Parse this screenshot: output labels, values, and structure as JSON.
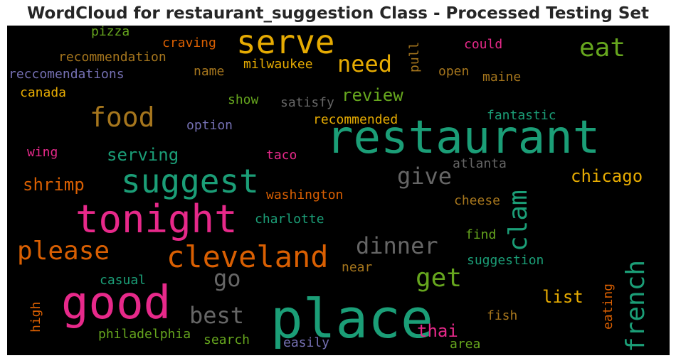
{
  "chart_data": {
    "type": "wordcloud",
    "title": "WordCloud for restaurant_suggestion Class - Processed Testing Set",
    "background": "#000000",
    "colormap": "Dark2",
    "words": [
      {
        "text": "place",
        "rank": 1,
        "color": "#1b9e77"
      },
      {
        "text": "restaurant",
        "rank": 2,
        "color": "#1b9e77"
      },
      {
        "text": "good",
        "rank": 3,
        "color": "#e7298a"
      },
      {
        "text": "tonight",
        "rank": 4,
        "color": "#e7298a"
      },
      {
        "text": "suggest",
        "rank": 5,
        "color": "#1b9e77"
      },
      {
        "text": "serve",
        "rank": 6,
        "color": "#e6ab02"
      },
      {
        "text": "cleveland",
        "rank": 7,
        "color": "#d95f02"
      },
      {
        "text": "please",
        "rank": 8,
        "color": "#d95f02"
      },
      {
        "text": "food",
        "rank": 9,
        "color": "#a6761d"
      },
      {
        "text": "french",
        "rank": 10,
        "color": "#1b9e77"
      },
      {
        "text": "clam",
        "rank": 11,
        "color": "#1b9e77"
      },
      {
        "text": "eat",
        "rank": 12,
        "color": "#66a61e"
      },
      {
        "text": "get",
        "rank": 13,
        "color": "#66a61e"
      },
      {
        "text": "dinner",
        "rank": 14,
        "color": "#666666"
      },
      {
        "text": "need",
        "rank": 15,
        "color": "#e6ab02"
      },
      {
        "text": "give",
        "rank": 16,
        "color": "#666666"
      },
      {
        "text": "best",
        "rank": 17,
        "color": "#666666"
      },
      {
        "text": "go",
        "rank": 18,
        "color": "#666666"
      },
      {
        "text": "chicago",
        "rank": 19,
        "color": "#e6ab02"
      },
      {
        "text": "thai",
        "rank": 20,
        "color": "#e7298a"
      },
      {
        "text": "shrimp",
        "rank": 21,
        "color": "#d95f02"
      },
      {
        "text": "serving",
        "rank": 22,
        "color": "#1b9e77"
      },
      {
        "text": "list",
        "rank": 23,
        "color": "#e6ab02"
      },
      {
        "text": "review",
        "rank": 24,
        "color": "#66a61e"
      },
      {
        "text": "recommendation",
        "rank": 25,
        "color": "#a6761d"
      },
      {
        "text": "reccomendations",
        "rank": 26,
        "color": "#7570b3"
      },
      {
        "text": "pizza",
        "rank": 27,
        "color": "#66a61e"
      },
      {
        "text": "craving",
        "rank": 28,
        "color": "#d95f02"
      },
      {
        "text": "could",
        "rank": 29,
        "color": "#e7298a"
      },
      {
        "text": "milwaukee",
        "rank": 30,
        "color": "#e6ab02"
      },
      {
        "text": "name",
        "rank": 31,
        "color": "#a6761d"
      },
      {
        "text": "open",
        "rank": 32,
        "color": "#a6761d"
      },
      {
        "text": "maine",
        "rank": 33,
        "color": "#a6761d"
      },
      {
        "text": "pull",
        "rank": 34,
        "color": "#a6761d"
      },
      {
        "text": "canada",
        "rank": 35,
        "color": "#e6ab02"
      },
      {
        "text": "show",
        "rank": 36,
        "color": "#66a61e"
      },
      {
        "text": "satisfy",
        "rank": 37,
        "color": "#666666"
      },
      {
        "text": "recommended",
        "rank": 38,
        "color": "#e6ab02"
      },
      {
        "text": "fantastic",
        "rank": 39,
        "color": "#1b9e77"
      },
      {
        "text": "option",
        "rank": 40,
        "color": "#7570b3"
      },
      {
        "text": "wing",
        "rank": 41,
        "color": "#e7298a"
      },
      {
        "text": "taco",
        "rank": 42,
        "color": "#e7298a"
      },
      {
        "text": "atlanta",
        "rank": 43,
        "color": "#666666"
      },
      {
        "text": "washington",
        "rank": 44,
        "color": "#d95f02"
      },
      {
        "text": "cheese",
        "rank": 45,
        "color": "#a6761d"
      },
      {
        "text": "charlotte",
        "rank": 46,
        "color": "#1b9e77"
      },
      {
        "text": "find",
        "rank": 47,
        "color": "#66a61e"
      },
      {
        "text": "suggestion",
        "rank": 48,
        "color": "#1b9e77"
      },
      {
        "text": "near",
        "rank": 49,
        "color": "#a6761d"
      },
      {
        "text": "casual",
        "rank": 50,
        "color": "#1b9e77"
      },
      {
        "text": "eating",
        "rank": 51,
        "color": "#d95f02"
      },
      {
        "text": "high",
        "rank": 52,
        "color": "#d95f02"
      },
      {
        "text": "fish",
        "rank": 53,
        "color": "#a6761d"
      },
      {
        "text": "philadelphia",
        "rank": 54,
        "color": "#66a61e"
      },
      {
        "text": "search",
        "rank": 55,
        "color": "#66a61e"
      },
      {
        "text": "easily",
        "rank": 56,
        "color": "#7570b3"
      },
      {
        "text": "area",
        "rank": 57,
        "color": "#66a61e"
      }
    ]
  }
}
